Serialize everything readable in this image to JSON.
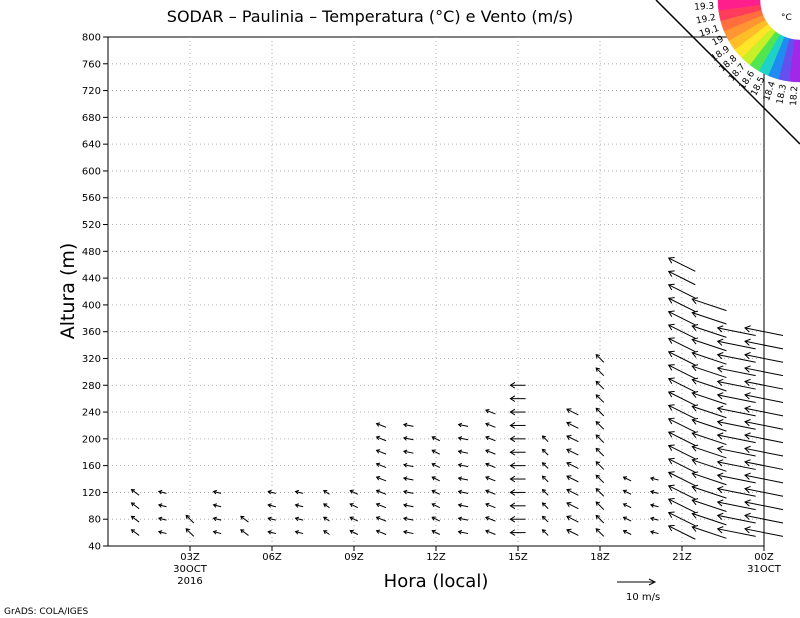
{
  "footer_credit": "GrADS: COLA/IGES",
  "colorbar": {
    "unit": "°C",
    "labels": [
      "19.3",
      "19.2",
      "19.1",
      "19",
      "18.9",
      "18.8",
      "18.7",
      "18.6",
      "18.5",
      "18.4",
      "18.3",
      "18.2"
    ],
    "colors": [
      "#ff1e8c",
      "#ff3c5a",
      "#ff6e3c",
      "#ff9632",
      "#ffbe28",
      "#ffe628",
      "#c8f028",
      "#50e650",
      "#1ed2c8",
      "#1e8cf0",
      "#6450f0",
      "#a028e6"
    ]
  },
  "chart_data": {
    "type": "vector",
    "title": "SODAR – Paulinia – Temperatura (°C) e Vento (m/s)",
    "xlabel": "Hora (local)",
    "ylabel": "Altura (m)",
    "xlim": [
      0,
      24
    ],
    "ylim": [
      40,
      800
    ],
    "grid": true,
    "y_ticks": [
      40,
      80,
      120,
      160,
      200,
      240,
      280,
      320,
      360,
      400,
      440,
      480,
      520,
      560,
      600,
      640,
      680,
      720,
      760,
      800
    ],
    "x_ticks": [
      {
        "x": 3,
        "label": "03Z",
        "sub1": "30OCT",
        "sub2": "2016"
      },
      {
        "x": 6,
        "label": "06Z",
        "sub1": "",
        "sub2": ""
      },
      {
        "x": 9,
        "label": "09Z",
        "sub1": "",
        "sub2": ""
      },
      {
        "x": 12,
        "label": "12Z",
        "sub1": "",
        "sub2": ""
      },
      {
        "x": 15,
        "label": "15Z",
        "sub1": "",
        "sub2": ""
      },
      {
        "x": 18,
        "label": "18Z",
        "sub1": "",
        "sub2": ""
      },
      {
        "x": 21,
        "label": "21Z",
        "sub1": "",
        "sub2": ""
      },
      {
        "x": 24,
        "label": "00Z",
        "sub1": "31OCT",
        "sub2": ""
      }
    ],
    "reference_vector": {
      "speed": 10,
      "label": "10 m/s"
    },
    "columns": [
      {
        "x": 1.0,
        "top": 120,
        "u": -2,
        "v": 1.5
      },
      {
        "x": 2.0,
        "top": 120,
        "u": -2,
        "v": 0.5
      },
      {
        "x": 3.0,
        "top": 80,
        "u": -2,
        "v": 2
      },
      {
        "x": 4.0,
        "top": 120,
        "u": -2,
        "v": 0.5
      },
      {
        "x": 5.0,
        "top": 80,
        "u": -2,
        "v": 1.5
      },
      {
        "x": 6.0,
        "top": 120,
        "u": -2,
        "v": 0.5
      },
      {
        "x": 7.0,
        "top": 120,
        "u": -2,
        "v": 0.5
      },
      {
        "x": 8.0,
        "top": 120,
        "u": -1.5,
        "v": 1
      },
      {
        "x": 9.0,
        "top": 120,
        "u": -2,
        "v": 1
      },
      {
        "x": 10.0,
        "top": 220,
        "u": -2.5,
        "v": 1
      },
      {
        "x": 11.0,
        "top": 220,
        "u": -2.5,
        "v": 0.5
      },
      {
        "x": 12.0,
        "top": 200,
        "u": -2,
        "v": 1
      },
      {
        "x": 13.0,
        "top": 220,
        "u": -2.5,
        "v": 0.5
      },
      {
        "x": 14.0,
        "top": 240,
        "u": -2.5,
        "v": 1
      },
      {
        "x": 15.0,
        "top": 280,
        "u": -4,
        "v": 0
      },
      {
        "x": 16.0,
        "top": 200,
        "u": -1.5,
        "v": 1.5
      },
      {
        "x": 17.0,
        "top": 240,
        "u": -3,
        "v": 1.5
      },
      {
        "x": 18.0,
        "top": 320,
        "u": -2,
        "v": 2
      },
      {
        "x": 19.0,
        "top": 140,
        "u": -2,
        "v": 1
      },
      {
        "x": 20.0,
        "top": 140,
        "u": -2,
        "v": 0.5
      },
      {
        "x": 21.0,
        "top": 460,
        "u": -7,
        "v": 3.5
      },
      {
        "x": 22.0,
        "top": 400,
        "u": -9,
        "v": 3
      },
      {
        "x": 23.0,
        "top": 360,
        "u": -10,
        "v": 2
      },
      {
        "x": 24.0,
        "top": 360,
        "u": -10,
        "v": 2
      }
    ]
  }
}
